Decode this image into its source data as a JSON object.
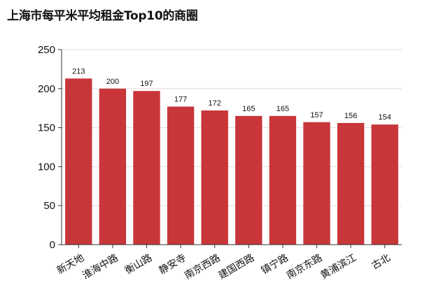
{
  "chart_data": {
    "type": "bar",
    "title": "上海市每平米平均租金Top10的商圈",
    "categories": [
      "新天地",
      "淮海中路",
      "衡山路",
      "静安寺",
      "南京西路",
      "建国西路",
      "镇宁路",
      "南京东路",
      "黄浦滨江",
      "古北"
    ],
    "values": [
      213,
      200,
      197,
      177,
      172,
      165,
      165,
      157,
      156,
      154
    ],
    "data_labels": [
      "213",
      "200",
      "197",
      "177",
      "172",
      "165",
      "165",
      "157",
      "156",
      "154"
    ],
    "ylim": [
      0,
      250
    ],
    "yticks": [
      0,
      50,
      100,
      150,
      200,
      250
    ],
    "ytick_labels": [
      "0",
      "50",
      "100",
      "150",
      "200",
      "250"
    ],
    "xlabel": "",
    "ylabel": "",
    "grid": true,
    "bar_color": "#c8363a",
    "grid_color": "#dddddd"
  }
}
